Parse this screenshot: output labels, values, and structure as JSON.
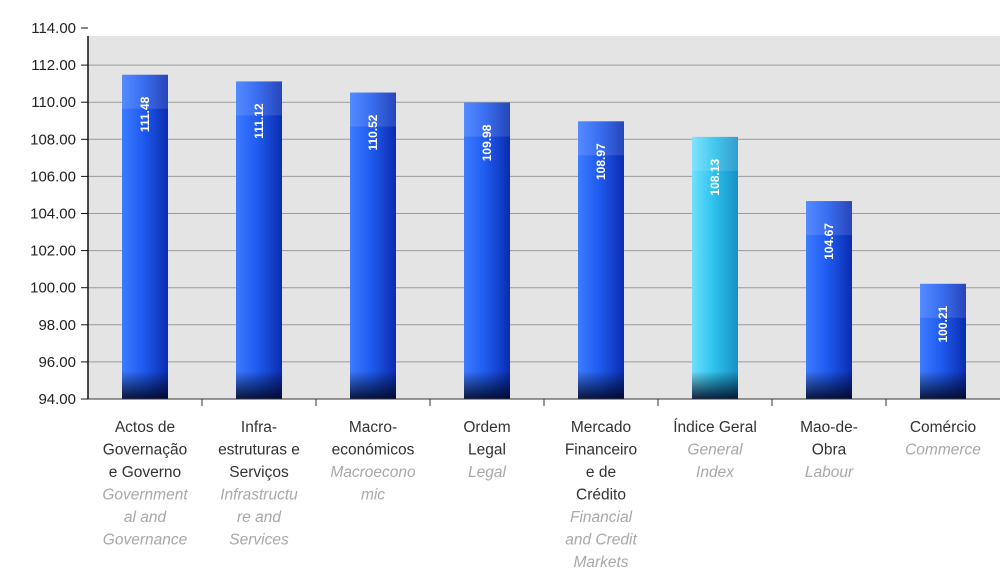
{
  "chart_data": {
    "type": "bar",
    "categories": [
      {
        "pt": [
          "Actos de",
          "Governação",
          "e Governo"
        ],
        "en": [
          "Government",
          "al and",
          "Governance"
        ]
      },
      {
        "pt": [
          "Infra-",
          "estruturas e",
          "Serviços"
        ],
        "en": [
          "Infrastructu",
          "re and",
          "Services"
        ]
      },
      {
        "pt": [
          "Macro-",
          "económicos"
        ],
        "en": [
          "Macroecono",
          "mic"
        ]
      },
      {
        "pt": [
          "Ordem",
          "Legal"
        ],
        "en": [
          "Legal"
        ]
      },
      {
        "pt": [
          "Mercado",
          "Financeiro",
          "e de",
          "Crédito"
        ],
        "en": [
          "Financial",
          "and Credit",
          "Markets"
        ]
      },
      {
        "pt": [
          "Índice Geral"
        ],
        "en": [
          "General",
          "Index"
        ]
      },
      {
        "pt": [
          "Mao-de-",
          "Obra"
        ],
        "en": [
          "Labour"
        ]
      },
      {
        "pt": [
          "Comércio"
        ],
        "en": [
          "Commerce"
        ]
      }
    ],
    "values": [
      111.48,
      111.12,
      110.52,
      109.98,
      108.97,
      108.13,
      104.67,
      100.21
    ],
    "data_labels": [
      "111.48",
      "111.12",
      "110.52",
      "109.98",
      "108.97",
      "108.13",
      "104.67",
      "100.21"
    ],
    "highlight_index": 5,
    "ylim": [
      94,
      114
    ],
    "yticks": [
      "94.00",
      "96.00",
      "98.00",
      "100.00",
      "102.00",
      "104.00",
      "106.00",
      "108.00",
      "110.00",
      "112.00",
      "114.00"
    ],
    "grid": true,
    "colors": {
      "bar": "#1e55e8",
      "bar_highlight": "#2fc4ee",
      "plot_background": "#e4e4e4",
      "gridline": "#9a9a9a"
    }
  }
}
